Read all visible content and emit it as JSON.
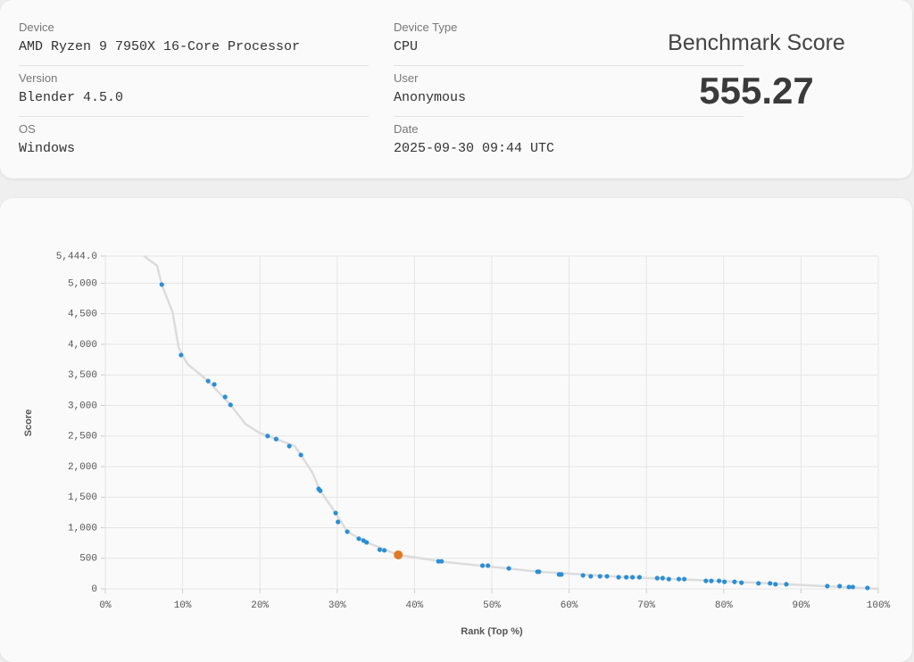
{
  "device_info": {
    "fields": [
      {
        "label": "Device",
        "value": "AMD Ryzen 9 7950X 16-Core Processor"
      },
      {
        "label": "Version",
        "value": "Blender 4.5.0"
      },
      {
        "label": "OS",
        "value": "Windows"
      },
      {
        "label": "Device Type",
        "value": "CPU"
      },
      {
        "label": "User",
        "value": "Anonymous"
      },
      {
        "label": "Date",
        "value": "2025-09-30 09:44 UTC"
      }
    ],
    "benchmark": {
      "label": "Benchmark Score",
      "value": "555.27"
    }
  },
  "chart_data": {
    "type": "scatter",
    "xlabel": "Rank (Top %)",
    "ylabel": "Score",
    "xlim": [
      0,
      100
    ],
    "ylim": [
      0,
      5444
    ],
    "xticks": [
      {
        "value": 0,
        "label": "0%"
      },
      {
        "value": 10,
        "label": "10%"
      },
      {
        "value": 20,
        "label": "20%"
      },
      {
        "value": 30,
        "label": "30%"
      },
      {
        "value": 40,
        "label": "40%"
      },
      {
        "value": 50,
        "label": "50%"
      },
      {
        "value": 60,
        "label": "60%"
      },
      {
        "value": 70,
        "label": "70%"
      },
      {
        "value": 80,
        "label": "80%"
      },
      {
        "value": 90,
        "label": "90%"
      },
      {
        "value": 100,
        "label": "100%"
      }
    ],
    "yticks": [
      0,
      500,
      {
        "value": 1000,
        "label": "1,000"
      },
      {
        "value": 1500,
        "label": "1,500"
      },
      {
        "value": 2000,
        "label": "2,000"
      },
      {
        "value": 2500,
        "label": "2,500"
      },
      {
        "value": 3000,
        "label": "3,000"
      },
      {
        "value": 3500,
        "label": "3,500"
      },
      {
        "value": 4000,
        "label": "4,000"
      },
      {
        "value": 4500,
        "label": "4,500"
      },
      {
        "value": 5000,
        "label": "5,000"
      },
      {
        "value": 5444,
        "label": "5,444.0"
      }
    ],
    "grid": true,
    "series": [
      {
        "kind": "line",
        "color": "#dcdcdc",
        "x": [
          5.0,
          6.7,
          7.3,
          8.7,
          9.5,
          10.6,
          13.3,
          16.2,
          18.1,
          19.9,
          24.5,
          25.3,
          26.8,
          27.8,
          29.8,
          31.3,
          33.8,
          37.9,
          44.1,
          56.1,
          67.4,
          79.4,
          88.1,
          100
        ],
        "values": [
          5444,
          5285,
          4978,
          4526,
          3942,
          3680,
          3400,
          3010,
          2700,
          2555,
          2336,
          2190,
          1898,
          1605,
          1240,
          935,
          760,
          555,
          438,
          280,
          190,
          130,
          75,
          0
        ]
      },
      {
        "kind": "points",
        "color": "#2b8fd6",
        "x": [
          7.3,
          9.8,
          13.3,
          14.1,
          15.5,
          16.2,
          21.0,
          22.1,
          23.8,
          25.3,
          27.6,
          27.8,
          29.8,
          30.1,
          31.3,
          32.8,
          33.4,
          33.8,
          35.5,
          36.1,
          43.1,
          43.5,
          48.8,
          49.5,
          52.2,
          55.9,
          56.1,
          58.7,
          59.0,
          61.8,
          62.8,
          64.0,
          64.9,
          66.4,
          67.4,
          68.2,
          69.1,
          71.4,
          72.1,
          72.9,
          74.2,
          74.9,
          77.7,
          78.4,
          79.4,
          80.1,
          81.4,
          82.3,
          84.5,
          86.0,
          86.7,
          88.1,
          93.4,
          95.0,
          96.2,
          96.7,
          98.6
        ],
        "values": [
          4978,
          3825,
          3400,
          3345,
          3140,
          3010,
          2500,
          2450,
          2335,
          2190,
          1635,
          1605,
          1240,
          1095,
          935,
          820,
          790,
          760,
          640,
          630,
          450,
          450,
          380,
          380,
          335,
          280,
          280,
          235,
          235,
          220,
          205,
          205,
          205,
          190,
          190,
          190,
          190,
          175,
          175,
          160,
          160,
          160,
          130,
          130,
          130,
          115,
          115,
          100,
          90,
          90,
          75,
          75,
          45,
          45,
          30,
          30,
          15
        ]
      },
      {
        "kind": "highlight",
        "color": "#e07b24",
        "x": [
          37.9
        ],
        "values": [
          555.27
        ]
      }
    ]
  }
}
